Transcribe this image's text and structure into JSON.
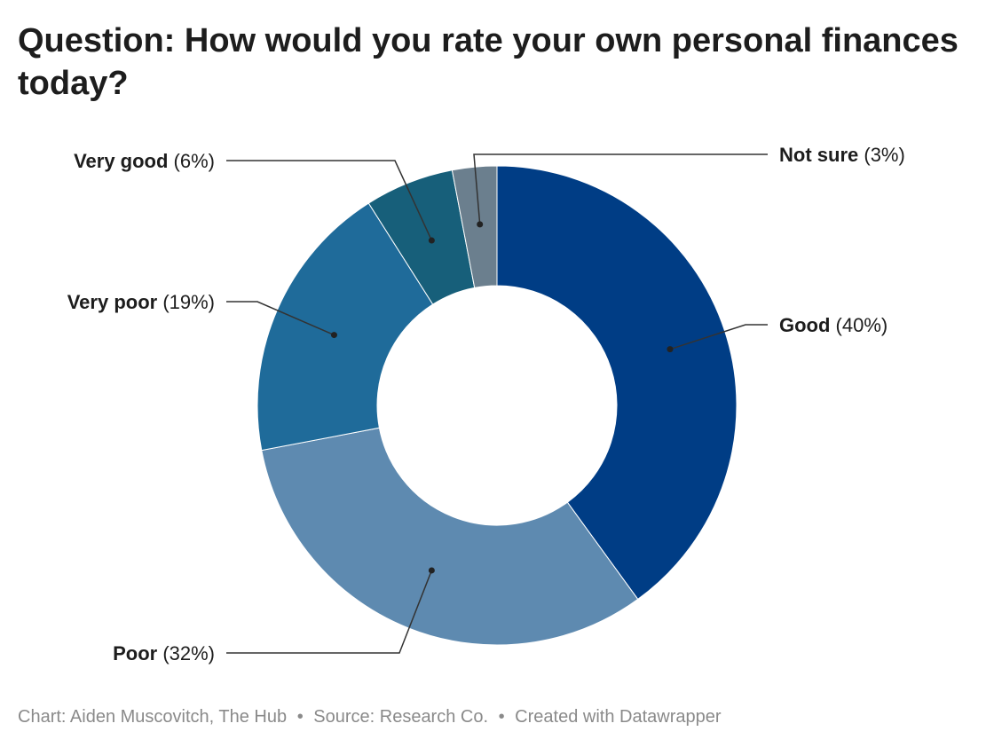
{
  "title": "Question: How would you rate your own personal finances today?",
  "footer": {
    "chart": "Chart: Aiden Muscovitch, The Hub",
    "separator": "•",
    "source": "Source: Research Co.",
    "created": "Created with Datawrapper"
  },
  "colors": {
    "Good": "#003d85",
    "Poor": "#5e8ab0",
    "Very poor": "#1f6b9a",
    "Very good": "#175f7a",
    "Not sure": "#6b7f8e"
  },
  "chart_data": {
    "type": "pie",
    "variant": "donut",
    "title": "Question: How would you rate your own personal finances today?",
    "slices": [
      {
        "name": "Good",
        "value": 40,
        "label": "(40%)"
      },
      {
        "name": "Poor",
        "value": 32,
        "label": "(32%)"
      },
      {
        "name": "Very poor",
        "value": 19,
        "label": "(19%)"
      },
      {
        "name": "Very good",
        "value": 6,
        "label": "(6%)"
      },
      {
        "name": "Not sure",
        "value": 3,
        "label": "(3%)"
      }
    ],
    "legend": "none"
  }
}
